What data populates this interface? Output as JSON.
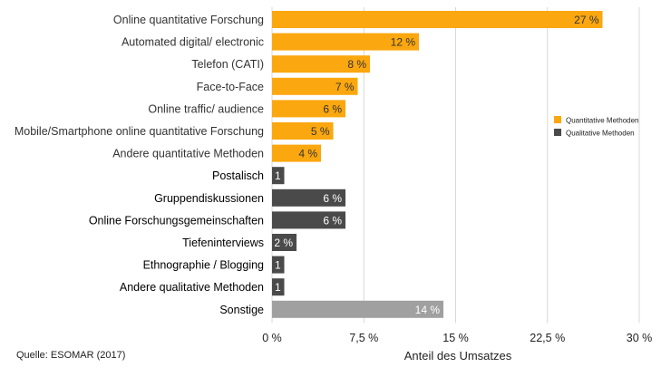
{
  "source_note": "Quelle: ESOMAR (2017)",
  "chart_data": {
    "type": "bar",
    "orientation": "horizontal",
    "xlabel": "Anteil des Umsatzes",
    "xlim": [
      0,
      30
    ],
    "x_ticks": [
      0,
      7.5,
      15,
      22.5,
      30
    ],
    "x_tick_labels": [
      "0 %",
      "7,5 %",
      "15 %",
      "22,5 %",
      "30 %"
    ],
    "grid": "vertical",
    "legend_position": "right",
    "legend": [
      {
        "label": "Quantitative Methoden",
        "color": "#FBA70F"
      },
      {
        "label": "Qualitative Methoden",
        "color": "#4A4A4A"
      }
    ],
    "bars": [
      {
        "category": "Online quantitative Forschung",
        "value": 27,
        "label": "27 %",
        "group": "quant",
        "color": "#FBA70F"
      },
      {
        "category": "Automated digital/ electronic",
        "value": 12,
        "label": "12 %",
        "group": "quant",
        "color": "#FBA70F"
      },
      {
        "category": "Telefon (CATI)",
        "value": 8,
        "label": "8 %",
        "group": "quant",
        "color": "#FBA70F"
      },
      {
        "category": "Face-to-Face",
        "value": 7,
        "label": "7 %",
        "group": "quant",
        "color": "#FBA70F"
      },
      {
        "category": "Online traffic/ audience",
        "value": 6,
        "label": "6 %",
        "group": "quant",
        "color": "#FBA70F"
      },
      {
        "category": "Mobile/Smartphone online quantitative Forschung",
        "value": 5,
        "label": "5 %",
        "group": "quant",
        "color": "#FBA70F"
      },
      {
        "category": "Andere quantitative Methoden",
        "value": 4,
        "label": "4 %",
        "group": "quant",
        "color": "#FBA70F"
      },
      {
        "category": "Postalisch",
        "value": 1,
        "label": "1 %",
        "group": "qual",
        "color": "#4A4A4A"
      },
      {
        "category": "Gruppendiskussionen",
        "value": 6,
        "label": "6 %",
        "group": "qual",
        "color": "#4A4A4A"
      },
      {
        "category": "Online Forschungsgemeinschaften",
        "value": 6,
        "label": "6 %",
        "group": "qual",
        "color": "#4A4A4A"
      },
      {
        "category": "Tiefeninterviews",
        "value": 2,
        "label": "2 %",
        "group": "qual",
        "color": "#4A4A4A"
      },
      {
        "category": "Ethnographie / Blogging",
        "value": 1,
        "label": "1 %",
        "group": "qual",
        "color": "#4A4A4A"
      },
      {
        "category": "Andere qualitative Methoden",
        "value": 1,
        "label": "1 %",
        "group": "qual",
        "color": "#4A4A4A"
      },
      {
        "category": "Sonstige",
        "value": 14,
        "label": "14 %",
        "group": "other",
        "color": "#A0A0A0"
      }
    ]
  }
}
